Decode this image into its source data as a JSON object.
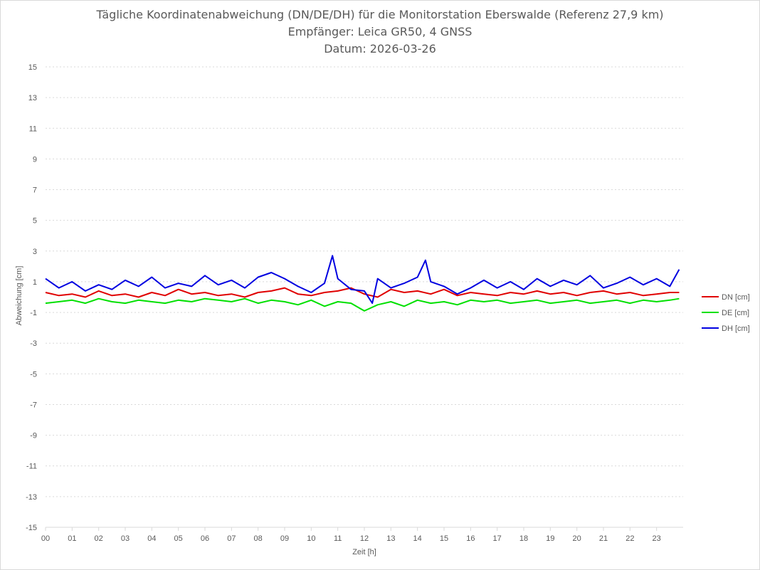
{
  "chart_data": {
    "type": "line",
    "title": "Tägliche Koordinatenabweichung (DN/DE/DH) für die Monitorstation Eberswalde (Referenz 27,9 km)",
    "subtitle": "Empfänger: Leica GR50, 4 GNSS",
    "date_line": "Datum: 2026-03-26",
    "xlabel": "Zeit [h]",
    "ylabel": "Abweichung [cm]",
    "xlim": [
      0,
      24
    ],
    "ylim": [
      -15,
      15
    ],
    "y_ticks": [
      -15,
      -13,
      -11,
      -9,
      -7,
      -5,
      -3,
      -1,
      1,
      3,
      5,
      7,
      9,
      11,
      13,
      15
    ],
    "y_tick_labels": [
      "-15",
      "-13",
      "-11",
      "-9",
      "-7",
      "-5",
      "-3",
      "-1",
      "1",
      "3",
      "5",
      "7",
      "9",
      "11",
      "13",
      "15"
    ],
    "x_ticks": [
      0,
      1,
      2,
      3,
      4,
      5,
      6,
      7,
      8,
      9,
      10,
      11,
      12,
      13,
      14,
      15,
      16,
      17,
      18,
      19,
      20,
      21,
      22,
      23
    ],
    "x_tick_labels": [
      "00",
      "01",
      "02",
      "03",
      "04",
      "05",
      "06",
      "07",
      "08",
      "09",
      "10",
      "11",
      "12",
      "13",
      "14",
      "15",
      "16",
      "17",
      "18",
      "19",
      "20",
      "21",
      "22",
      "23"
    ],
    "grid": "horizontal dotted",
    "legend_position": "right",
    "series": [
      {
        "name": "DN [cm]",
        "color": "#e00000",
        "x": [
          0.0,
          0.5,
          1.0,
          1.5,
          2.0,
          2.5,
          3.0,
          3.5,
          4.0,
          4.5,
          5.0,
          5.5,
          6.0,
          6.5,
          7.0,
          7.5,
          8.0,
          8.5,
          9.0,
          9.5,
          10.0,
          10.5,
          11.0,
          11.5,
          12.0,
          12.5,
          13.0,
          13.5,
          14.0,
          14.5,
          15.0,
          15.5,
          16.0,
          16.5,
          17.0,
          17.5,
          18.0,
          18.5,
          19.0,
          19.5,
          20.0,
          20.5,
          21.0,
          21.5,
          22.0,
          22.5,
          23.0,
          23.5,
          23.85
        ],
        "y": [
          0.3,
          0.1,
          0.2,
          0.0,
          0.4,
          0.1,
          0.2,
          0.0,
          0.3,
          0.1,
          0.5,
          0.2,
          0.3,
          0.1,
          0.2,
          0.0,
          0.3,
          0.4,
          0.6,
          0.2,
          0.1,
          0.3,
          0.4,
          0.6,
          0.2,
          0.0,
          0.5,
          0.3,
          0.4,
          0.2,
          0.5,
          0.1,
          0.3,
          0.2,
          0.1,
          0.3,
          0.2,
          0.4,
          0.2,
          0.3,
          0.1,
          0.3,
          0.4,
          0.2,
          0.3,
          0.1,
          0.2,
          0.3,
          0.3
        ]
      },
      {
        "name": "DE [cm]",
        "color": "#00e000",
        "x": [
          0.0,
          0.5,
          1.0,
          1.5,
          2.0,
          2.5,
          3.0,
          3.5,
          4.0,
          4.5,
          5.0,
          5.5,
          6.0,
          6.5,
          7.0,
          7.5,
          8.0,
          8.5,
          9.0,
          9.5,
          10.0,
          10.5,
          11.0,
          11.5,
          12.0,
          12.5,
          13.0,
          13.5,
          14.0,
          14.5,
          15.0,
          15.5,
          16.0,
          16.5,
          17.0,
          17.5,
          18.0,
          18.5,
          19.0,
          19.5,
          20.0,
          20.5,
          21.0,
          21.5,
          22.0,
          22.5,
          23.0,
          23.5,
          23.85
        ],
        "y": [
          -0.4,
          -0.3,
          -0.2,
          -0.4,
          -0.1,
          -0.3,
          -0.4,
          -0.2,
          -0.3,
          -0.4,
          -0.2,
          -0.3,
          -0.1,
          -0.2,
          -0.3,
          -0.1,
          -0.4,
          -0.2,
          -0.3,
          -0.5,
          -0.2,
          -0.6,
          -0.3,
          -0.4,
          -0.9,
          -0.5,
          -0.3,
          -0.6,
          -0.2,
          -0.4,
          -0.3,
          -0.5,
          -0.2,
          -0.3,
          -0.2,
          -0.4,
          -0.3,
          -0.2,
          -0.4,
          -0.3,
          -0.2,
          -0.4,
          -0.3,
          -0.2,
          -0.4,
          -0.2,
          -0.3,
          -0.2,
          -0.1
        ]
      },
      {
        "name": "DH [cm]",
        "color": "#0000e0",
        "x": [
          0.0,
          0.5,
          1.0,
          1.5,
          2.0,
          2.5,
          3.0,
          3.5,
          4.0,
          4.5,
          5.0,
          5.5,
          6.0,
          6.5,
          7.0,
          7.5,
          8.0,
          8.5,
          9.0,
          9.5,
          10.0,
          10.5,
          10.8,
          11.0,
          11.5,
          12.0,
          12.3,
          12.5,
          13.0,
          13.5,
          14.0,
          14.3,
          14.5,
          15.0,
          15.5,
          16.0,
          16.5,
          17.0,
          17.5,
          18.0,
          18.5,
          19.0,
          19.5,
          20.0,
          20.5,
          21.0,
          21.5,
          22.0,
          22.5,
          23.0,
          23.5,
          23.85
        ],
        "y": [
          1.2,
          0.6,
          1.0,
          0.4,
          0.8,
          0.5,
          1.1,
          0.7,
          1.3,
          0.6,
          0.9,
          0.7,
          1.4,
          0.8,
          1.1,
          0.6,
          1.3,
          1.6,
          1.2,
          0.7,
          0.3,
          0.9,
          2.7,
          1.2,
          0.5,
          0.4,
          -0.4,
          1.2,
          0.6,
          0.9,
          1.3,
          2.4,
          1.0,
          0.7,
          0.2,
          0.6,
          1.1,
          0.6,
          1.0,
          0.5,
          1.2,
          0.7,
          1.1,
          0.8,
          1.4,
          0.6,
          0.9,
          1.3,
          0.8,
          1.2,
          0.7,
          1.8
        ]
      }
    ]
  }
}
